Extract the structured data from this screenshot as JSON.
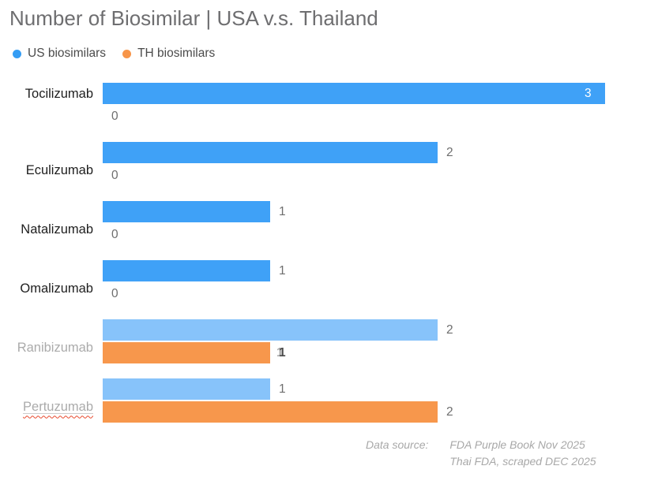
{
  "title": "Number of Biosimilar | USA v.s. Thailand",
  "legend": {
    "items": [
      {
        "label": "US biosimilars",
        "color": "#359DF4"
      },
      {
        "label": "TH biosimilars",
        "color": "#F79549"
      }
    ]
  },
  "rows": [
    {
      "label": "Tocilizumab",
      "us": 3,
      "th": 0
    },
    {
      "label": "Eculizumab",
      "us": 2,
      "th": 0
    },
    {
      "label": "Natalizumab",
      "us": 1,
      "th": 0
    },
    {
      "label": "Omalizumab",
      "us": 1,
      "th": 0
    },
    {
      "label": "Ranibizumab",
      "us": 2,
      "th": 1
    },
    {
      "label": "Pertuzumab",
      "us": 1,
      "th": 2
    }
  ],
  "source": {
    "label": "Data source:",
    "line1": "FDA Purple Book Nov 2025",
    "line2": "Thai FDA, scraped DEC 2025"
  },
  "colors": {
    "us_strong": "#3FA1F7",
    "us_light": "#87C3FA",
    "th_orange": "#F7974C",
    "legend_us": "#359DF4",
    "legend_th": "#F79549",
    "title_text": "#6E6E70",
    "dark_label": "#1E1E1E",
    "muted_label": "#ABABAB",
    "value_label": "#6E6E6E",
    "inside_value": "#FFFFFF",
    "source_text": "#A8A8A8",
    "spellcheck_red": "#E8492E"
  },
  "chart_data": {
    "type": "bar",
    "orientation": "horizontal",
    "title": "Number of Biosimilar | USA v.s. Thailand",
    "categories": [
      "Tocilizumab",
      "Eculizumab",
      "Natalizumab",
      "Omalizumab",
      "Ranibizumab",
      "Pertuzumab"
    ],
    "series": [
      {
        "name": "US biosimilars",
        "values": [
          3,
          2,
          1,
          1,
          2,
          1
        ],
        "color": "#3FA1F7"
      },
      {
        "name": "TH biosimilars",
        "values": [
          0,
          0,
          0,
          0,
          1,
          2
        ],
        "color": "#F7974C"
      }
    ],
    "xlim": [
      0,
      3
    ],
    "grid": false,
    "legend_position": "top-left",
    "value_labels": true,
    "annotations": [
      "Data source: FDA Purple Book Nov 2025",
      "Thai FDA, scraped DEC 2025"
    ]
  }
}
